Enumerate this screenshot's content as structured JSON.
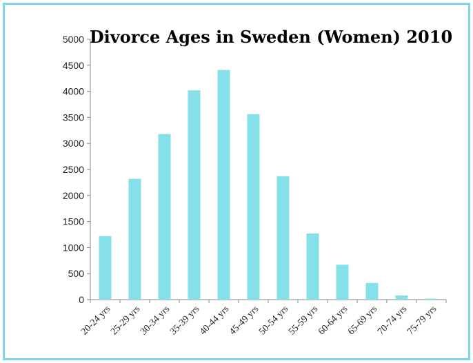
{
  "chart_data": {
    "type": "bar",
    "title": "Divorce Ages in Sweden (Women) 2010",
    "xlabel": "",
    "ylabel": "",
    "categories": [
      "20-24 yrs",
      "25-29 yrs",
      "30-34 yrs",
      "35-39 yrs",
      "40-44 yrs",
      "45-49 yrs",
      "50-54 yrs",
      "55-59 yrs",
      "60-64 yrs",
      "65-69 yrs",
      "70-74 yrs",
      "75-79 yrs"
    ],
    "values": [
      1220,
      2320,
      3180,
      4020,
      4410,
      3560,
      2370,
      1270,
      670,
      320,
      80,
      20
    ],
    "ylim": [
      0,
      5000
    ],
    "yticks": [
      "0",
      "500",
      "1000",
      "1500",
      "2000",
      "2500",
      "3000",
      "3500",
      "4000",
      "4500",
      "5000"
    ],
    "grid": false,
    "legend": "none",
    "bar_color": "#85e0ea",
    "frame_color": "#7fd8e6"
  }
}
